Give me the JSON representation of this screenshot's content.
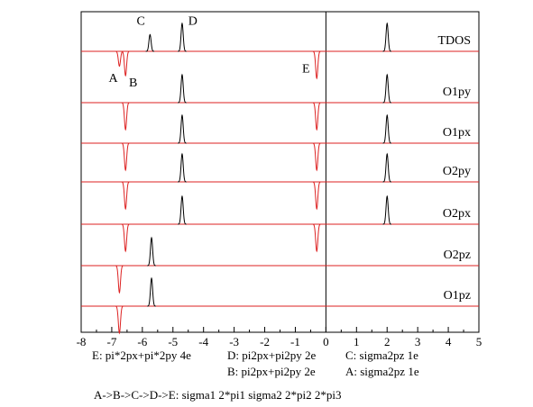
{
  "chart_data": {
    "type": "line",
    "title": "",
    "xlabel": "",
    "ylabel": "",
    "xlim": [
      -8,
      5
    ],
    "x_ticks": [
      -8,
      -7,
      -6,
      -5,
      -4,
      -3,
      -2,
      -1,
      0,
      1,
      2,
      3,
      4,
      5
    ],
    "fermi_line_x": 0,
    "colors": {
      "spin_up": "#000000",
      "spin_down": "#dd2222",
      "baseline": "#dd2222"
    },
    "panels": [
      {
        "name": "TDOS",
        "up_peaks": [
          {
            "x": -5.75,
            "h": 0.6
          },
          {
            "x": -4.7,
            "h": 1.0
          },
          {
            "x": 2.0,
            "h": 1.0
          }
        ],
        "down_peaks": [
          {
            "x": -6.75,
            "h": 0.55
          },
          {
            "x": -6.55,
            "h": 0.9
          },
          {
            "x": -0.3,
            "h": 1.0
          }
        ]
      },
      {
        "name": "O1py",
        "up_peaks": [
          {
            "x": -4.7,
            "h": 1.0
          },
          {
            "x": 2.0,
            "h": 1.0
          }
        ],
        "down_peaks": [
          {
            "x": -6.55,
            "h": 1.0
          },
          {
            "x": -0.3,
            "h": 1.0
          }
        ]
      },
      {
        "name": "O1px",
        "up_peaks": [
          {
            "x": -4.7,
            "h": 1.0
          },
          {
            "x": 2.0,
            "h": 1.0
          }
        ],
        "down_peaks": [
          {
            "x": -6.55,
            "h": 1.0
          },
          {
            "x": -0.3,
            "h": 1.0
          }
        ]
      },
      {
        "name": "O2py",
        "up_peaks": [
          {
            "x": -4.7,
            "h": 1.0
          },
          {
            "x": 2.0,
            "h": 1.0
          }
        ],
        "down_peaks": [
          {
            "x": -6.55,
            "h": 1.0
          },
          {
            "x": -0.3,
            "h": 1.0
          }
        ]
      },
      {
        "name": "O2px",
        "up_peaks": [
          {
            "x": -4.7,
            "h": 1.0
          },
          {
            "x": 2.0,
            "h": 1.0
          }
        ],
        "down_peaks": [
          {
            "x": -6.55,
            "h": 1.0
          },
          {
            "x": -0.3,
            "h": 1.0
          }
        ]
      },
      {
        "name": "O2pz",
        "up_peaks": [
          {
            "x": -5.7,
            "h": 1.0
          }
        ],
        "down_peaks": [
          {
            "x": -6.75,
            "h": 1.0
          }
        ]
      },
      {
        "name": "O1pz",
        "up_peaks": [
          {
            "x": -5.7,
            "h": 1.0
          }
        ],
        "down_peaks": [
          {
            "x": -6.75,
            "h": 1.0
          }
        ]
      }
    ],
    "annotations": [
      {
        "text": "C",
        "x": -6.05,
        "panel": 0,
        "level": 0.95
      },
      {
        "text": "D",
        "x": -4.35,
        "panel": 0,
        "level": 0.95
      },
      {
        "text": "A",
        "x": -6.95,
        "panel": 0,
        "level": -1.1
      },
      {
        "text": "B",
        "x": -6.3,
        "panel": 0,
        "level": -1.25
      },
      {
        "text": "E",
        "x": -0.65,
        "panel": 0,
        "level": -0.75
      }
    ]
  },
  "legend_notes": [
    {
      "text": "E: pi*2px+pi*2py 4e"
    },
    {
      "text": "D: pi2px+pi2py 2e"
    },
    {
      "text": "C: sigma2pz  1e"
    },
    {
      "text": "B: pi2px+pi2py 2e"
    },
    {
      "text": "A: sigma2pz  1e"
    }
  ],
  "sequence_note": "A->B->C->D->E: sigma1  2*pi1  sigma2  2*pi2  2*pi3"
}
